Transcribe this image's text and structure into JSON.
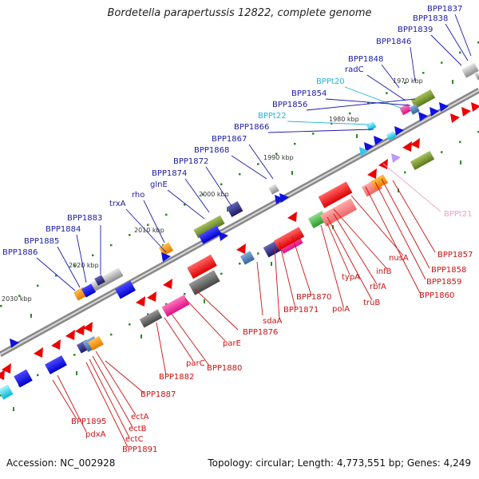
{
  "title": "Bordetella parapertussis 12822, complete genome",
  "footer": {
    "accession": "Accession: NC_002928",
    "topology": "Topology: circular; Length: 4,773,551 bp; Genes: 4,249"
  },
  "colors": {
    "forward_label": "#1a1aaa",
    "reverse_label": "#cc1111",
    "trna_label": "#22b4dd",
    "trna_reverse_label": "#f0a0c8",
    "tick": "#2a8a2a"
  },
  "ticks": [
    {
      "label": "1970 kbp"
    },
    {
      "label": "1980 kbp"
    },
    {
      "label": "1990 kbp"
    },
    {
      "label": "2000 kbp"
    },
    {
      "label": "2010 kbp"
    },
    {
      "label": "2020 kbp"
    },
    {
      "label": "2030 kbp"
    }
  ],
  "top_labels": [
    {
      "text": "BPP1837",
      "type": "gene"
    },
    {
      "text": "BPP1838",
      "type": "gene"
    },
    {
      "text": "BPP1839",
      "type": "gene"
    },
    {
      "text": "BPP1846",
      "type": "gene"
    },
    {
      "text": "BPP1848",
      "type": "gene"
    },
    {
      "text": "radC",
      "type": "gene"
    },
    {
      "text": "BPPt20",
      "type": "trna"
    },
    {
      "text": "BPP1854",
      "type": "gene"
    },
    {
      "text": "BPP1856",
      "type": "gene"
    },
    {
      "text": "BPPt22",
      "type": "trna"
    },
    {
      "text": "BPP1866",
      "type": "gene"
    },
    {
      "text": "BPP1867",
      "type": "gene"
    },
    {
      "text": "BPP1868",
      "type": "gene"
    },
    {
      "text": "BPP1872",
      "type": "gene"
    },
    {
      "text": "BPP1874",
      "type": "gene"
    },
    {
      "text": "glnE",
      "type": "gene"
    },
    {
      "text": "rho",
      "type": "gene"
    },
    {
      "text": "trxA",
      "type": "gene"
    },
    {
      "text": "BPP1883",
      "type": "gene"
    },
    {
      "text": "BPP1884",
      "type": "gene"
    },
    {
      "text": "BPP1885",
      "type": "gene"
    },
    {
      "text": "BPP1886",
      "type": "gene"
    }
  ],
  "bottom_labels": [
    {
      "text": "BPPt21",
      "type": "trna"
    },
    {
      "text": "BPP1857",
      "type": "gene"
    },
    {
      "text": "BPP1858",
      "type": "gene"
    },
    {
      "text": "BPP1859",
      "type": "gene"
    },
    {
      "text": "BPP1860",
      "type": "gene"
    },
    {
      "text": "nusA",
      "type": "gene"
    },
    {
      "text": "infB",
      "type": "gene"
    },
    {
      "text": "rbfA",
      "type": "gene"
    },
    {
      "text": "truB",
      "type": "gene"
    },
    {
      "text": "typA",
      "type": "gene"
    },
    {
      "text": "polA",
      "type": "gene"
    },
    {
      "text": "BPP1870",
      "type": "gene"
    },
    {
      "text": "BPP1871",
      "type": "gene"
    },
    {
      "text": "sdaA",
      "type": "gene"
    },
    {
      "text": "BPP1876",
      "type": "gene"
    },
    {
      "text": "parE",
      "type": "gene"
    },
    {
      "text": "BPP1880",
      "type": "gene"
    },
    {
      "text": "parC",
      "type": "gene"
    },
    {
      "text": "BPP1882",
      "type": "gene"
    },
    {
      "text": "BPP1887",
      "type": "gene"
    },
    {
      "text": "ectA",
      "type": "gene"
    },
    {
      "text": "ectB",
      "type": "gene"
    },
    {
      "text": "ectC",
      "type": "gene"
    },
    {
      "text": "BPP1891",
      "type": "gene"
    },
    {
      "text": "pdxA",
      "type": "gene"
    },
    {
      "text": "BPP1895",
      "type": "gene"
    }
  ]
}
